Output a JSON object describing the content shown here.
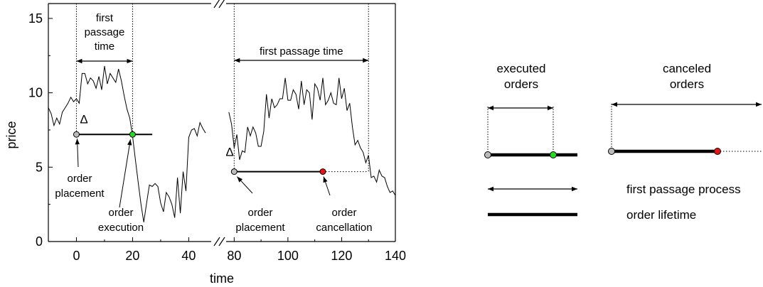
{
  "chart_data": {
    "type": "line",
    "xlabel": "time",
    "ylabel": "price",
    "ylim": [
      0,
      16
    ],
    "y_ticks": [
      "0",
      "5",
      "10",
      "15"
    ],
    "panels": [
      {
        "xlim": [
          -10,
          48
        ],
        "x_ticks": [
          "0",
          "20",
          "40"
        ],
        "series": [
          {
            "x": [
              -10,
              -9,
              -8,
              -7,
              -6,
              -5,
              -4,
              -3,
              -2,
              -1,
              0,
              1,
              2,
              3,
              4,
              5,
              6,
              7,
              8,
              9,
              10,
              11,
              12,
              13,
              14,
              15,
              16,
              17,
              18,
              19,
              20,
              21,
              22,
              23,
              24,
              25,
              26,
              27,
              28,
              29,
              30,
              31,
              32,
              33,
              34,
              35,
              36,
              37,
              38,
              39,
              40,
              41,
              42,
              43,
              44,
              45,
              46
            ],
            "y": [
              9.0,
              8.6,
              7.8,
              8.3,
              7.9,
              8.7,
              9.0,
              9.3,
              9.7,
              9.4,
              9.6,
              9.3,
              11.3,
              11.3,
              10.6,
              11.0,
              10.8,
              10.3,
              11.1,
              10.2,
              11.8,
              10.6,
              11.3,
              11.0,
              10.7,
              11.6,
              10.8,
              9.8,
              8.9,
              8.3,
              7.1,
              5.5,
              4.0,
              2.5,
              1.3,
              2.6,
              3.8,
              3.7,
              3.9,
              3.7,
              2.6,
              2.0,
              3.3,
              3.0,
              2.5,
              1.6,
              4.3,
              1.9,
              4.7,
              3.4,
              7.0,
              7.5,
              7.6,
              7.1,
              8.0,
              7.6,
              7.3
            ]
          }
        ],
        "order_line": {
          "start": 0,
          "end": 27,
          "level": 7.2,
          "execution": 20
        },
        "first_passage": {
          "start": 0,
          "end": 20
        },
        "labels": {
          "delta": "Δ",
          "first_passage_lines": [
            "first",
            "passage",
            "time"
          ],
          "placement_lines": [
            "order",
            "placement"
          ],
          "execution_lines": [
            "order",
            "execution"
          ]
        }
      },
      {
        "xlim": [
          77,
          140
        ],
        "x_ticks": [
          "80",
          "100",
          "120",
          "140"
        ],
        "series": [
          {
            "x": [
              78,
              79,
              80,
              81,
              82,
              83,
              84,
              85,
              86,
              87,
              88,
              89,
              90,
              91,
              92,
              93,
              94,
              95,
              96,
              97,
              98,
              99,
              100,
              101,
              102,
              103,
              104,
              105,
              106,
              107,
              108,
              109,
              110,
              111,
              112,
              113,
              114,
              115,
              116,
              117,
              118,
              119,
              120,
              121,
              122,
              123,
              124,
              125,
              126,
              127,
              128,
              129,
              130,
              131,
              132,
              133,
              134,
              135,
              136,
              137,
              138,
              139,
              140
            ],
            "y": [
              8.7,
              7.9,
              6.3,
              7.2,
              5.5,
              6.1,
              6.0,
              7.7,
              7.1,
              7.7,
              7.3,
              6.4,
              6.4,
              7.4,
              9.9,
              8.3,
              9.6,
              9.0,
              9.2,
              9.6,
              9.6,
              11.0,
              9.5,
              9.5,
              10.2,
              9.9,
              8.9,
              10.8,
              9.2,
              10.2,
              10.0,
              8.2,
              10.6,
              10.3,
              9.5,
              11.0,
              9.2,
              9.5,
              10.0,
              9.3,
              9.2,
              11.0,
              9.6,
              10.3,
              8.8,
              9.3,
              7.7,
              6.5,
              6.8,
              6.3,
              6.0,
              5.3,
              5.8,
              4.3,
              4.4,
              4.0,
              4.8,
              4.4,
              4.3,
              3.7,
              3.3,
              3.4,
              3.1
            ]
          }
        ],
        "order_line": {
          "start": 80,
          "end": 113,
          "level": 4.7,
          "cancellation": 113,
          "dotted_to": 130
        },
        "first_passage": {
          "start": 80,
          "end": 130
        },
        "labels": {
          "delta": "Δ",
          "first_passage": "first passage time",
          "placement_lines": [
            "order",
            "placement"
          ],
          "cancellation_lines": [
            "order",
            "cancellation"
          ]
        }
      }
    ]
  },
  "legend": {
    "executed": [
      "executed",
      "orders"
    ],
    "canceled": [
      "canceled",
      "orders"
    ],
    "first_passage_process": "first passage process",
    "order_lifetime": "order lifetime"
  },
  "colors": {
    "placement": "#bbbbbb",
    "execution": "#22dd22",
    "cancellation": "#ee1111",
    "line": "#000000"
  }
}
